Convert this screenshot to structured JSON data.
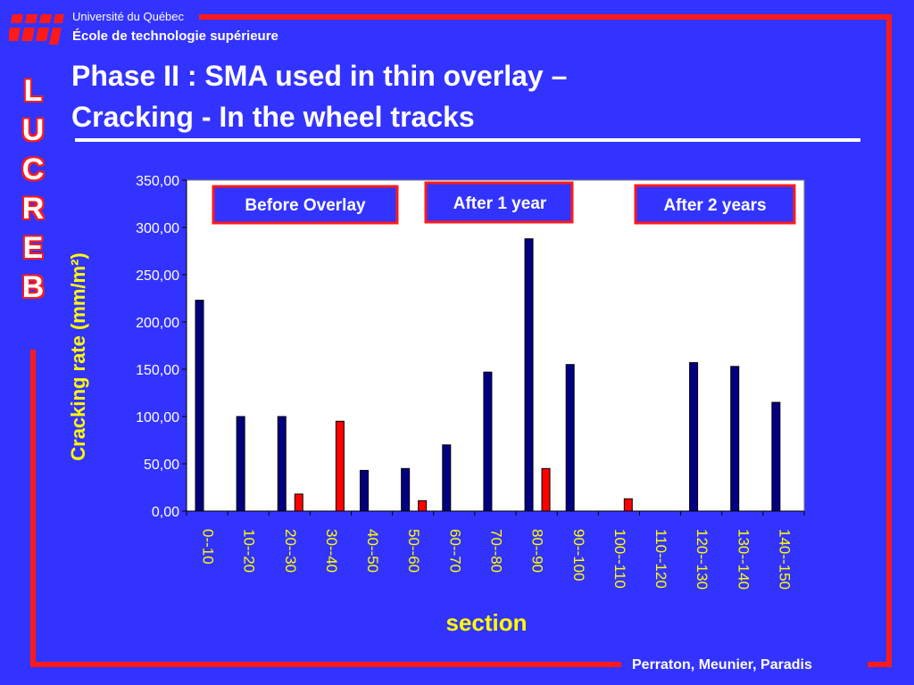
{
  "header": {
    "university": "Université du Québec",
    "school": "École de technologie supérieure",
    "side_letters": [
      "L",
      "U",
      "C",
      "R",
      "E",
      "B"
    ]
  },
  "slide": {
    "title_line1": "Phase II : SMA used in thin overlay –",
    "title_line2": "Cracking - In the wheel tracks"
  },
  "footer": {
    "authors": "Perraton, Meunier, Paradis"
  },
  "colors": {
    "background": "#3333ff",
    "accent": "#ff1a1a",
    "label_yellow": "#ffff00",
    "bar_before": "#000080",
    "bar_after": "#ff0000"
  },
  "chart_data": {
    "type": "bar",
    "ylabel": "Cracking rate (mm/m²)",
    "xlabel": "section",
    "ylim": [
      0,
      350
    ],
    "yticks": [
      "0,00",
      "50,00",
      "100,00",
      "150,00",
      "200,00",
      "250,00",
      "300,00",
      "350,00"
    ],
    "categories": [
      "0--10",
      "10--20",
      "20--30",
      "30--40",
      "40--50",
      "50--60",
      "60--70",
      "70--80",
      "80--90",
      "90--100",
      "100--110",
      "110--120",
      "120--130",
      "130--140",
      "140--150"
    ],
    "series": [
      {
        "name": "Before Overlay",
        "color": "#000080",
        "values": [
          223,
          100,
          100,
          0,
          43,
          45,
          70,
          147,
          288,
          155,
          0,
          0,
          157,
          153,
          115
        ]
      },
      {
        "name": "After 1 year",
        "color": "#ff0000",
        "values": [
          0,
          0,
          18,
          95,
          0,
          11,
          0,
          0,
          45,
          0,
          13,
          0,
          0,
          0,
          0
        ]
      }
    ],
    "annotations": [
      "Before Overlay",
      "After 1 year",
      "After 2 years"
    ],
    "grid": false
  }
}
